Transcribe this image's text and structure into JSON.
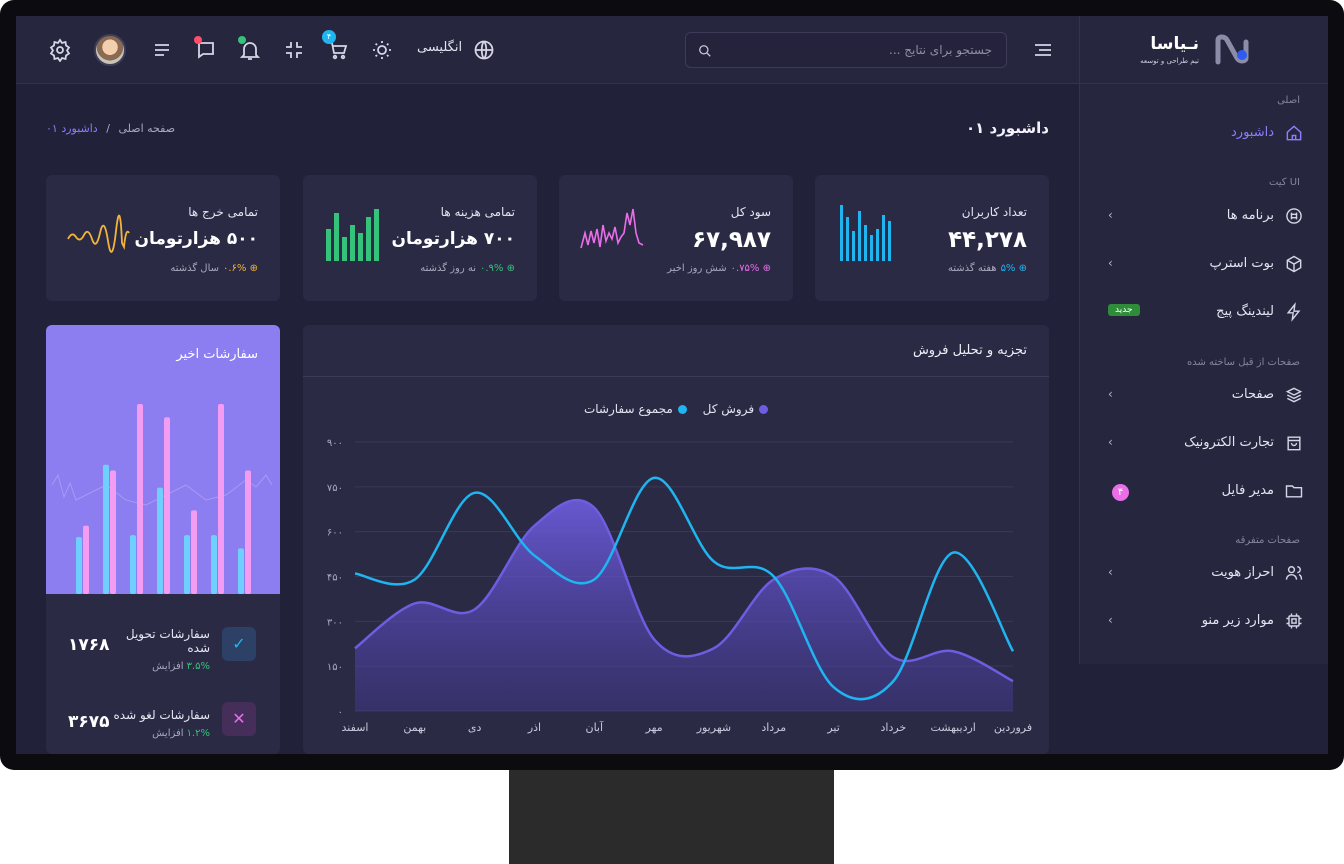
{
  "header": {
    "search_placeholder": "جستجو برای نتایج ...",
    "language_label": "انگلیسی",
    "cart_count": "۴",
    "icons": [
      "settings-icon",
      "menu-lines-icon",
      "chat-icon",
      "bell-icon",
      "collapse-icon",
      "cart-icon",
      "sun-icon",
      "globe-icon",
      "search-icon",
      "hamburger-icon"
    ]
  },
  "brand": {
    "name": "نـیاسا",
    "tagline": "تیم طراحی و توسعه",
    "colors": {
      "accent": "#8d7dff",
      "blue": "#1fb5f0",
      "purple": "#6e5de0"
    }
  },
  "sidebar": {
    "section_main": "اصلی",
    "dashboard": "داشبورد",
    "section_ui": "کیت UI",
    "apps": "برنامه ها",
    "bootstrap": "بوت استرپ",
    "landing": "لیندینگ پیج",
    "landing_badge": "جدید",
    "section_prebuilt": "صفحات از قبل ساخته شده",
    "pages": "صفحات",
    "ecommerce": "تجارت الکترونیک",
    "file_manager": "مدیر فایل",
    "file_manager_badge": "۴",
    "section_misc": "صفحات متفرقه",
    "auth": "احراز هویت",
    "submenu": "موارد زیر منو"
  },
  "page": {
    "title": "داشبورد ۰۱",
    "breadcrumb_home": "صفحه اصلی",
    "breadcrumb_sep": "/",
    "breadcrumb_current": "داشبورد ۰۱"
  },
  "cards": [
    {
      "title": "تعداد کاربران",
      "value": "۴۴,۲۷۸",
      "pct": "۵%",
      "period": "هفته گذشته",
      "color": "#1fb5f0"
    },
    {
      "title": "سود کل",
      "value": "۶۷,۹۸۷",
      "pct": "۰.۷۵%",
      "period": "شش روز اخیر",
      "color": "#e96ee7"
    },
    {
      "title": "تمامی هزینه ها",
      "value": "۷۰۰ هزارتومان",
      "pct": "۰.۹%",
      "period": "نه روز گذشته",
      "color": "#35c27a"
    },
    {
      "title": "تمامی خرج ها",
      "value": "۵۰۰ هزارتومان",
      "pct": "۰.۶%",
      "period": "سال گذشته",
      "color": "#f2b53c"
    }
  ],
  "orders": {
    "title": "سفارشات اخیر",
    "delivered_label": "سفارشات تحویل شده",
    "delivered_value": "۱۷۶۸",
    "delivered_pct": "۳.۵%",
    "delivered_text": "افزایش",
    "canceled_label": "سفارشات لغو شده",
    "canceled_value": "۳۶۷۵",
    "canceled_pct": "۱.۲%",
    "canceled_text": "افزایش",
    "chart_data": {
      "type": "bar",
      "series": [
        {
          "values": [
            0.3,
            0.68,
            0.31,
            0.56,
            0.31,
            0.31,
            0.24
          ]
        },
        {
          "values": [
            0.36,
            0.65,
            1.0,
            0.93,
            0.44,
            1.0,
            0.65
          ]
        }
      ]
    }
  },
  "sales": {
    "title": "تجزیه و تحلیل فروش",
    "legend_total_sales": "فروش کل",
    "legend_total_orders": "مجموع سفارشات",
    "chart_data": {
      "type": "area",
      "categories": [
        "فروردین",
        "اردیبهشت",
        "خرداد",
        "تیر",
        "مرداد",
        "شهریور",
        "مهر",
        "آبان",
        "اذر",
        "دی",
        "بهمن",
        "اسفند"
      ],
      "ylim": [
        0,
        900
      ],
      "yticks": [
        "۰",
        "۱۵۰",
        "۳۰۰",
        "۴۵۰",
        "۶۰۰",
        "۷۵۰",
        "۹۰۰"
      ],
      "series": [
        {
          "name": "فروش کل",
          "color": "#6e5de0",
          "values": [
            100,
            200,
            180,
            450,
            440,
            210,
            240,
            680,
            620,
            340,
            360,
            210
          ]
        },
        {
          "name": "مجموع سفارشات",
          "color": "#1fb5f0",
          "values": [
            200,
            530,
            100,
            80,
            450,
            500,
            780,
            440,
            520,
            730,
            440,
            460
          ]
        }
      ]
    }
  }
}
